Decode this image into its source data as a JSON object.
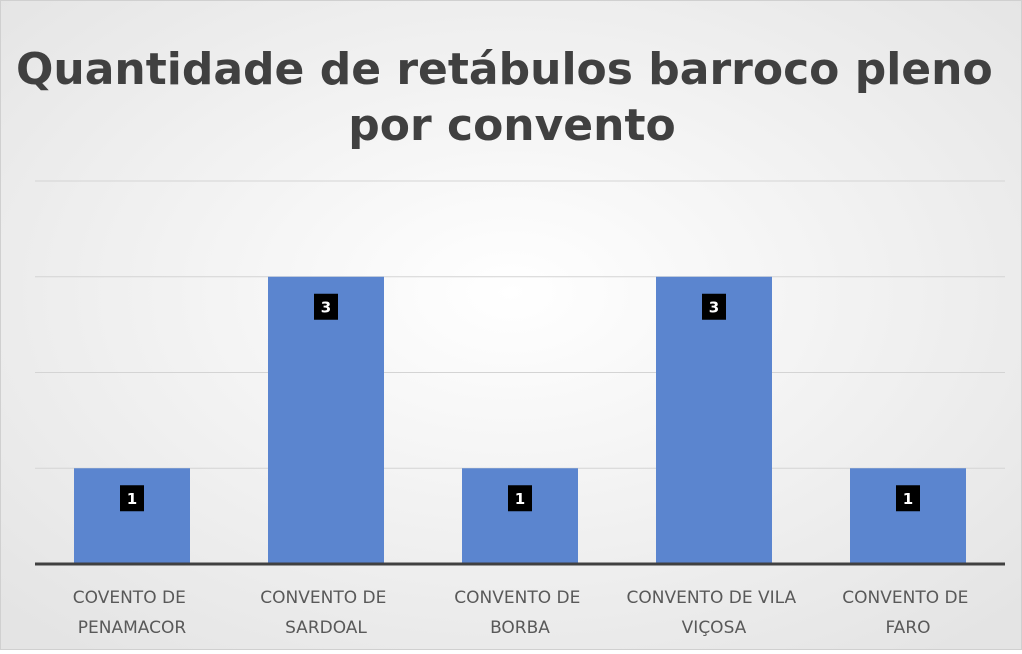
{
  "chart_data": {
    "type": "bar",
    "title": "Quantidade de retábulos barroco pleno por convento",
    "categories": [
      "COVENTO DE PENAMACOR",
      "CONVENTO DE SARDOAL",
      "CONVENTO DE BORBA",
      "CONVENTO DE VILA VIÇOSA",
      "CONVENTO DE FARO"
    ],
    "values": [
      1,
      3,
      1,
      3,
      1
    ],
    "color": "#5b85cf",
    "ylim": [
      0,
      4
    ],
    "yticks": [
      0,
      1,
      2,
      3,
      4
    ],
    "grid": true
  }
}
